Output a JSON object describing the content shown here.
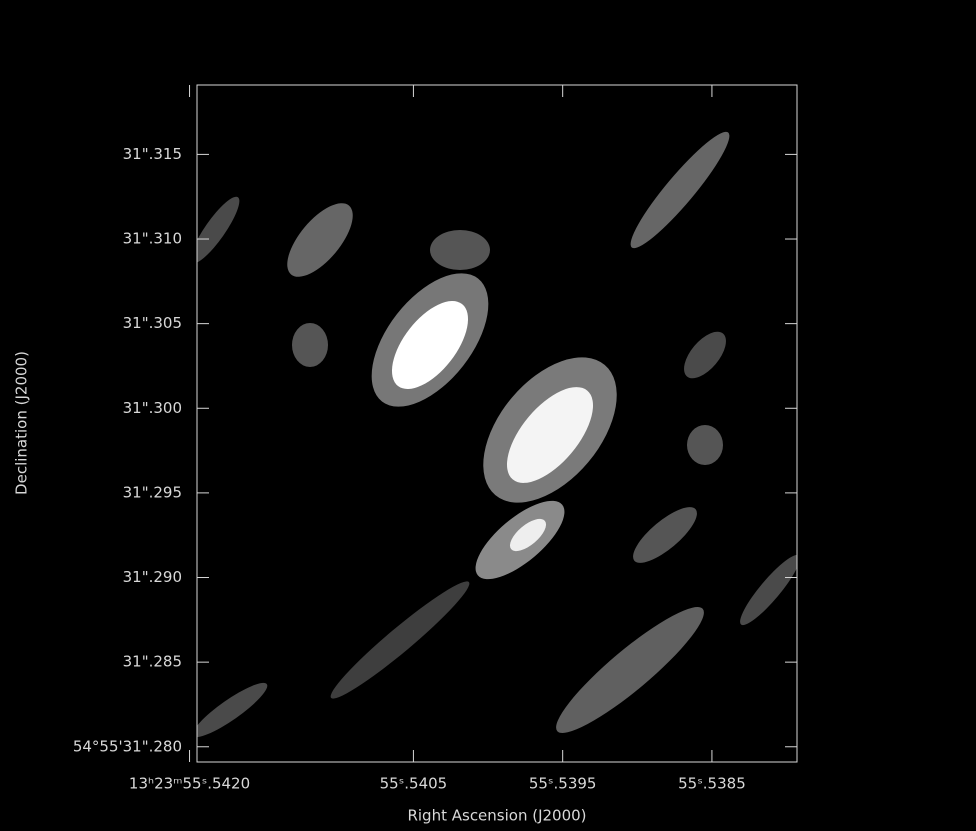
{
  "chart_data": {
    "type": "image",
    "xlabel": "Right Ascension (J2000)",
    "ylabel": "Declination (J2000)",
    "xlim": [
      55.54195,
      55.53793
    ],
    "ylim": [
      31.2791,
      31.3191
    ],
    "xticks": [
      {
        "value": 55.542,
        "label": "13ʰ23ᵐ55ˢ.5420"
      },
      {
        "value": 55.5405,
        "label": "55ˢ.5405"
      },
      {
        "value": 55.5395,
        "label": "55ˢ.5395"
      },
      {
        "value": 55.5385,
        "label": "55ˢ.5385"
      }
    ],
    "yticks": [
      {
        "value": 31.28,
        "label": "54°55'31\".280"
      },
      {
        "value": 31.285,
        "label": "31\".285"
      },
      {
        "value": 31.29,
        "label": "31\".290"
      },
      {
        "value": 31.295,
        "label": "31\".295"
      },
      {
        "value": 31.3,
        "label": "31\".300"
      },
      {
        "value": 31.305,
        "label": "31\".305"
      },
      {
        "value": 31.31,
        "label": "31\".310"
      },
      {
        "value": 31.315,
        "label": "31\".315"
      }
    ]
  }
}
